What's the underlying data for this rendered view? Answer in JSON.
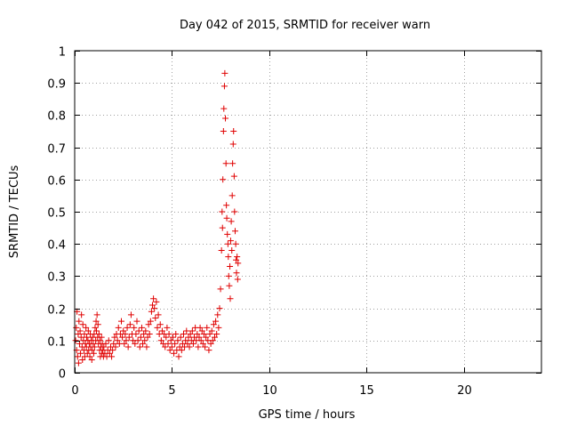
{
  "chart_data": {
    "type": "scatter",
    "title": "Day 042 of 2015, SRMTID for receiver warn",
    "xlabel": "GPS time / hours",
    "ylabel": "SRMTID / TECUs",
    "xlim": [
      0,
      24
    ],
    "ylim": [
      0,
      1
    ],
    "xticks": [
      0,
      5,
      10,
      15,
      20
    ],
    "xtick_labels": [
      "0",
      "5",
      "10",
      "15",
      "20"
    ],
    "yticks": [
      0,
      0.1,
      0.2,
      0.3,
      0.4,
      0.5,
      0.6,
      0.7,
      0.8,
      0.9,
      1
    ],
    "ytick_labels": [
      "0",
      "0.1",
      "0.2",
      "0.3",
      "0.4",
      "0.5",
      "0.6",
      "0.7",
      "0.8",
      "0.9",
      "1"
    ],
    "grid": true,
    "marker": "+",
    "series": [
      {
        "name": "SRMTID",
        "color": "#e00000",
        "points": [
          [
            0.05,
            0.1
          ],
          [
            0.08,
            0.14
          ],
          [
            0.1,
            0.07
          ],
          [
            0.12,
            0.19
          ],
          [
            0.15,
            0.05
          ],
          [
            0.18,
            0.12
          ],
          [
            0.2,
            0.03
          ],
          [
            0.22,
            0.16
          ],
          [
            0.25,
            0.09
          ],
          [
            0.28,
            0.13
          ],
          [
            0.3,
            0.06
          ],
          [
            0.33,
            0.11
          ],
          [
            0.35,
            0.18
          ],
          [
            0.38,
            0.08
          ],
          [
            0.4,
            0.04
          ],
          [
            0.42,
            0.15
          ],
          [
            0.45,
            0.1
          ],
          [
            0.48,
            0.07
          ],
          [
            0.5,
            0.12
          ],
          [
            0.52,
            0.05
          ],
          [
            0.55,
            0.09
          ],
          [
            0.58,
            0.14
          ],
          [
            0.6,
            0.08
          ],
          [
            0.62,
            0.11
          ],
          [
            0.65,
            0.06
          ],
          [
            0.68,
            0.1
          ],
          [
            0.7,
            0.13
          ],
          [
            0.72,
            0.07
          ],
          [
            0.75,
            0.09
          ],
          [
            0.78,
            0.05
          ],
          [
            0.8,
            0.12
          ],
          [
            0.82,
            0.08
          ],
          [
            0.85,
            0.1
          ],
          [
            0.88,
            0.04
          ],
          [
            0.9,
            0.07
          ],
          [
            0.92,
            0.11
          ],
          [
            0.95,
            0.09
          ],
          [
            0.98,
            0.06
          ],
          [
            1.0,
            0.12
          ],
          [
            1.02,
            0.08
          ],
          [
            1.05,
            0.14
          ],
          [
            1.08,
            0.1
          ],
          [
            1.1,
            0.16
          ],
          [
            1.12,
            0.13
          ],
          [
            1.15,
            0.18
          ],
          [
            1.18,
            0.11
          ],
          [
            1.2,
            0.15
          ],
          [
            1.22,
            0.09
          ],
          [
            1.25,
            0.12
          ],
          [
            1.28,
            0.07
          ],
          [
            1.3,
            0.1
          ],
          [
            1.32,
            0.05
          ],
          [
            1.35,
            0.08
          ],
          [
            1.38,
            0.11
          ],
          [
            1.4,
            0.06
          ],
          [
            1.42,
            0.09
          ],
          [
            1.45,
            0.07
          ],
          [
            1.48,
            0.05
          ],
          [
            1.5,
            0.08
          ],
          [
            1.55,
            0.06
          ],
          [
            1.6,
            0.09
          ],
          [
            1.65,
            0.05
          ],
          [
            1.7,
            0.07
          ],
          [
            1.75,
            0.1
          ],
          [
            1.8,
            0.06
          ],
          [
            1.85,
            0.08
          ],
          [
            1.9,
            0.05
          ],
          [
            1.95,
            0.07
          ],
          [
            2.0,
            0.09
          ],
          [
            2.05,
            0.11
          ],
          [
            2.1,
            0.08
          ],
          [
            2.15,
            0.12
          ],
          [
            2.2,
            0.1
          ],
          [
            2.25,
            0.14
          ],
          [
            2.3,
            0.09
          ],
          [
            2.35,
            0.12
          ],
          [
            2.4,
            0.16
          ],
          [
            2.45,
            0.11
          ],
          [
            2.5,
            0.13
          ],
          [
            2.55,
            0.09
          ],
          [
            2.6,
            0.12
          ],
          [
            2.65,
            0.1
          ],
          [
            2.7,
            0.14
          ],
          [
            2.75,
            0.08
          ],
          [
            2.8,
            0.11
          ],
          [
            2.85,
            0.15
          ],
          [
            2.9,
            0.18
          ],
          [
            2.95,
            0.12
          ],
          [
            3.0,
            0.1
          ],
          [
            3.05,
            0.14
          ],
          [
            3.1,
            0.09
          ],
          [
            3.15,
            0.12
          ],
          [
            3.2,
            0.16
          ],
          [
            3.25,
            0.1
          ],
          [
            3.3,
            0.13
          ],
          [
            3.35,
            0.08
          ],
          [
            3.4,
            0.11
          ],
          [
            3.45,
            0.14
          ],
          [
            3.5,
            0.09
          ],
          [
            3.55,
            0.12
          ],
          [
            3.6,
            0.1
          ],
          [
            3.65,
            0.13
          ],
          [
            3.7,
            0.08
          ],
          [
            3.75,
            0.11
          ],
          [
            3.8,
            0.15
          ],
          [
            3.85,
            0.12
          ],
          [
            3.9,
            0.16
          ],
          [
            3.95,
            0.19
          ],
          [
            4.0,
            0.21
          ],
          [
            4.05,
            0.23
          ],
          [
            4.1,
            0.2
          ],
          [
            4.15,
            0.17
          ],
          [
            4.2,
            0.22
          ],
          [
            4.25,
            0.14
          ],
          [
            4.3,
            0.18
          ],
          [
            4.35,
            0.12
          ],
          [
            4.4,
            0.15
          ],
          [
            4.45,
            0.1
          ],
          [
            4.5,
            0.13
          ],
          [
            4.55,
            0.09
          ],
          [
            4.6,
            0.12
          ],
          [
            4.65,
            0.08
          ],
          [
            4.7,
            0.11
          ],
          [
            4.75,
            0.14
          ],
          [
            4.8,
            0.09
          ],
          [
            4.85,
            0.12
          ],
          [
            4.9,
            0.07
          ],
          [
            4.95,
            0.1
          ],
          [
            5.0,
            0.08
          ],
          [
            5.05,
            0.11
          ],
          [
            5.1,
            0.06
          ],
          [
            5.15,
            0.09
          ],
          [
            5.2,
            0.12
          ],
          [
            5.25,
            0.07
          ],
          [
            5.3,
            0.1
          ],
          [
            5.35,
            0.05
          ],
          [
            5.4,
            0.08
          ],
          [
            5.45,
            0.11
          ],
          [
            5.5,
            0.07
          ],
          [
            5.55,
            0.09
          ],
          [
            5.6,
            0.12
          ],
          [
            5.65,
            0.08
          ],
          [
            5.7,
            0.1
          ],
          [
            5.75,
            0.13
          ],
          [
            5.8,
            0.09
          ],
          [
            5.85,
            0.11
          ],
          [
            5.9,
            0.08
          ],
          [
            5.95,
            0.12
          ],
          [
            6.0,
            0.1
          ],
          [
            6.05,
            0.13
          ],
          [
            6.1,
            0.09
          ],
          [
            6.15,
            0.11
          ],
          [
            6.2,
            0.14
          ],
          [
            6.25,
            0.1
          ],
          [
            6.3,
            0.12
          ],
          [
            6.35,
            0.08
          ],
          [
            6.4,
            0.11
          ],
          [
            6.45,
            0.14
          ],
          [
            6.5,
            0.1
          ],
          [
            6.55,
            0.13
          ],
          [
            6.6,
            0.09
          ],
          [
            6.65,
            0.12
          ],
          [
            6.7,
            0.08
          ],
          [
            6.75,
            0.11
          ],
          [
            6.8,
            0.14
          ],
          [
            6.85,
            0.1
          ],
          [
            6.9,
            0.07
          ],
          [
            6.95,
            0.12
          ],
          [
            7.0,
            0.09
          ],
          [
            7.05,
            0.13
          ],
          [
            7.1,
            0.1
          ],
          [
            7.15,
            0.15
          ],
          [
            7.2,
            0.11
          ],
          [
            7.25,
            0.16
          ],
          [
            7.3,
            0.12
          ],
          [
            7.35,
            0.18
          ],
          [
            7.4,
            0.14
          ],
          [
            7.45,
            0.2
          ],
          [
            7.5,
            0.26
          ],
          [
            7.55,
            0.38
          ],
          [
            7.58,
            0.5
          ],
          [
            7.6,
            0.45
          ],
          [
            7.62,
            0.6
          ],
          [
            7.65,
            0.75
          ],
          [
            7.67,
            0.82
          ],
          [
            7.7,
            0.89
          ],
          [
            7.72,
            0.93
          ],
          [
            7.75,
            0.79
          ],
          [
            7.78,
            0.65
          ],
          [
            7.8,
            0.52
          ],
          [
            7.82,
            0.48
          ],
          [
            7.85,
            0.43
          ],
          [
            7.88,
            0.4
          ],
          [
            7.9,
            0.36
          ],
          [
            7.92,
            0.3
          ],
          [
            7.95,
            0.27
          ],
          [
            7.98,
            0.33
          ],
          [
            8.0,
            0.23
          ],
          [
            8.02,
            0.41
          ],
          [
            8.05,
            0.47
          ],
          [
            8.08,
            0.38
          ],
          [
            8.1,
            0.55
          ],
          [
            8.12,
            0.65
          ],
          [
            8.15,
            0.71
          ],
          [
            8.17,
            0.75
          ],
          [
            8.2,
            0.61
          ],
          [
            8.22,
            0.5
          ],
          [
            8.25,
            0.44
          ],
          [
            8.28,
            0.4
          ],
          [
            8.3,
            0.35
          ],
          [
            8.32,
            0.31
          ],
          [
            8.35,
            0.36
          ],
          [
            8.38,
            0.29
          ],
          [
            8.4,
            0.34
          ]
        ]
      }
    ]
  }
}
